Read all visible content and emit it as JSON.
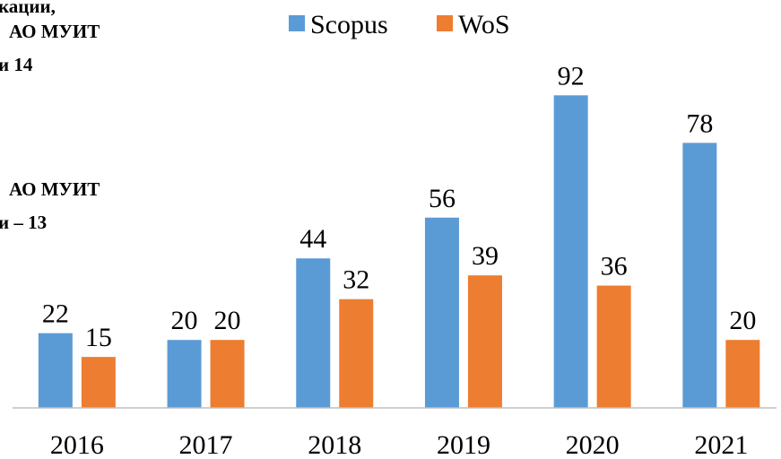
{
  "chart_data": {
    "type": "bar",
    "annotations": [
      "кации,",
      "АО МУИТ",
      "и 14",
      "АО МУИТ",
      "и – 13"
    ],
    "categories": [
      "2016",
      "2017",
      "2018",
      "2019",
      "2020",
      "2021"
    ],
    "series": [
      {
        "name": "Scopus",
        "color": "#5b9bd5",
        "values": [
          22,
          20,
          44,
          56,
          92,
          78
        ]
      },
      {
        "name": "WoS",
        "color": "#ed7d31",
        "values": [
          15,
          20,
          32,
          39,
          36,
          20
        ]
      }
    ],
    "ylim": [
      0,
      100
    ],
    "legend": "top"
  }
}
